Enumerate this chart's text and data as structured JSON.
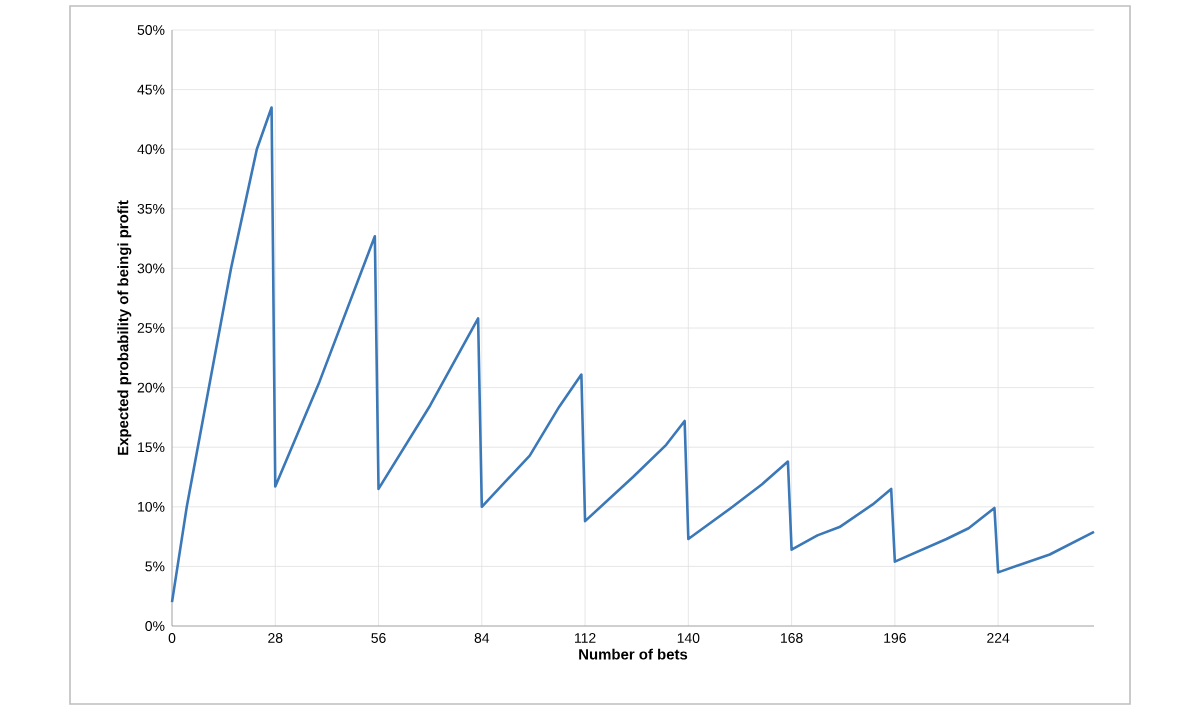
{
  "chart_data": {
    "type": "line",
    "xlabel": "Number of bets",
    "ylabel": "Expected probability of beingi profit",
    "x": [
      0,
      4,
      10,
      16,
      23,
      27,
      28,
      40,
      55,
      56,
      70,
      83,
      84,
      97,
      105,
      111,
      112,
      125,
      134,
      139,
      140,
      152,
      160,
      167,
      168,
      175,
      181,
      190,
      195,
      196,
      210,
      216,
      223,
      224,
      238,
      250
    ],
    "series": [
      {
        "color": "#3b78b8",
        "values": [
          2,
          10,
          20,
          30,
          40,
          43.5,
          11.7,
          20.5,
          32.7,
          11.5,
          18.5,
          25.8,
          10.0,
          14.3,
          18.4,
          21.1,
          8.8,
          12.5,
          15.2,
          17.2,
          7.3,
          10.0,
          11.9,
          13.8,
          6.4,
          7.6,
          8.3,
          10.2,
          11.5,
          5.4,
          7.3,
          8.2,
          9.9,
          4.5,
          6.0,
          7.9
        ]
      }
    ],
    "xlim": [
      0,
      250
    ],
    "xticks": [
      0,
      28,
      56,
      84,
      112,
      140,
      168,
      196,
      224
    ],
    "ylim": [
      0,
      50
    ],
    "yticks": [
      {
        "value": 0,
        "label": "0%"
      },
      {
        "value": 5,
        "label": "5%"
      },
      {
        "value": 10,
        "label": "10%"
      },
      {
        "value": 15,
        "label": "15%"
      },
      {
        "value": 20,
        "label": "20%"
      },
      {
        "value": 25,
        "label": "25%"
      },
      {
        "value": 30,
        "label": "30%"
      },
      {
        "value": 35,
        "label": "35%"
      },
      {
        "value": 40,
        "label": "40%"
      },
      {
        "value": 45,
        "label": "45%"
      },
      {
        "value": 50,
        "label": "50%"
      }
    ],
    "grid": true,
    "marker": "none",
    "line_style": "solid"
  }
}
